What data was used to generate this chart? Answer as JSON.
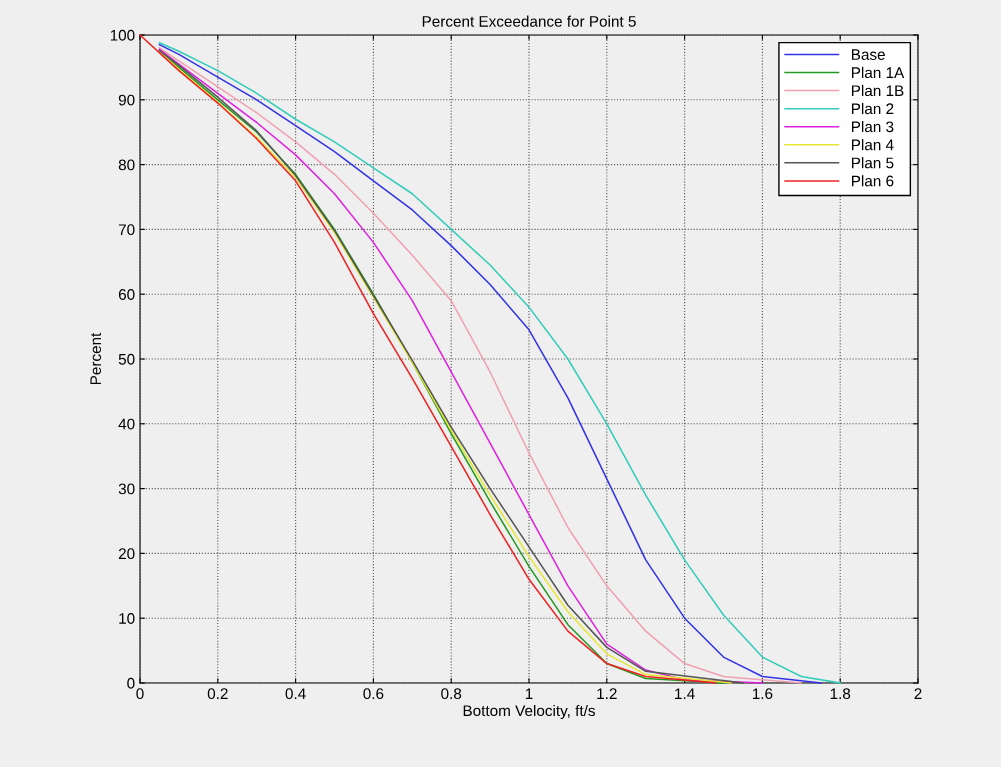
{
  "chart_data": {
    "type": "line",
    "title": "Percent Exceedance for Point 5",
    "xlabel": "Bottom Velocity, ft/s",
    "ylabel": "Percent",
    "series": [
      {
        "name": "Base",
        "color": "#3333e6",
        "x": [
          0.05,
          0.1,
          0.2,
          0.3,
          0.4,
          0.5,
          0.6,
          0.7,
          0.8,
          0.9,
          1.0,
          1.1,
          1.2,
          1.3,
          1.4,
          1.5,
          1.6,
          1.75
        ],
        "values": [
          98.5,
          97,
          93.5,
          90,
          86,
          82,
          77.5,
          73,
          67.5,
          61.5,
          54.5,
          44,
          31.5,
          19,
          10,
          4,
          1,
          0
        ]
      },
      {
        "name": "Plan 1A",
        "color": "#229922",
        "x": [
          0.05,
          0.1,
          0.2,
          0.3,
          0.4,
          0.5,
          0.6,
          0.7,
          0.8,
          0.9,
          1.0,
          1.1,
          1.2,
          1.3,
          1.5
        ],
        "values": [
          97.5,
          95,
          90,
          85,
          78.5,
          70,
          60,
          49.5,
          38.5,
          28,
          18,
          9,
          3,
          0.7,
          0
        ]
      },
      {
        "name": "Plan 1B",
        "color": "#f0a0b0",
        "x": [
          0.05,
          0.1,
          0.2,
          0.3,
          0.4,
          0.5,
          0.6,
          0.7,
          0.8,
          0.9,
          1.0,
          1.1,
          1.2,
          1.3,
          1.4,
          1.5,
          1.7
        ],
        "values": [
          98,
          96,
          92,
          88,
          83.5,
          78.5,
          72.5,
          66,
          59,
          48,
          35.5,
          24,
          15,
          8,
          3,
          1,
          0
        ]
      },
      {
        "name": "Plan 2",
        "color": "#33ccbb",
        "x": [
          0.05,
          0.1,
          0.2,
          0.3,
          0.4,
          0.5,
          0.6,
          0.7,
          0.8,
          0.9,
          1.0,
          1.1,
          1.2,
          1.3,
          1.4,
          1.5,
          1.6,
          1.7,
          1.8
        ],
        "values": [
          98.8,
          97.5,
          94.5,
          91,
          87,
          83.5,
          79.5,
          75.5,
          70,
          64.5,
          58,
          50,
          40,
          29,
          19,
          10.5,
          4,
          1,
          0
        ]
      },
      {
        "name": "Plan 3",
        "color": "#dd22dd",
        "x": [
          0.05,
          0.1,
          0.2,
          0.3,
          0.4,
          0.5,
          0.6,
          0.7,
          0.8,
          0.9,
          1.0,
          1.1,
          1.2,
          1.3,
          1.4,
          1.6
        ],
        "values": [
          97.8,
          95.5,
          91,
          86.5,
          81.5,
          75.5,
          68,
          59,
          48,
          37,
          26,
          15,
          6,
          2,
          0.5,
          0
        ]
      },
      {
        "name": "Plan 4",
        "color": "#e6e633",
        "x": [
          0.05,
          0.1,
          0.2,
          0.3,
          0.4,
          0.5,
          0.6,
          0.7,
          0.8,
          0.9,
          1.0,
          1.1,
          1.2,
          1.3,
          1.52
        ],
        "values": [
          97.4,
          94.7,
          89.6,
          84.2,
          78,
          69.5,
          59.5,
          49.5,
          39,
          29,
          19.5,
          11,
          4.5,
          1.3,
          0
        ]
      },
      {
        "name": "Plan 5",
        "color": "#555555",
        "x": [
          0.05,
          0.1,
          0.2,
          0.3,
          0.4,
          0.5,
          0.6,
          0.7,
          0.8,
          0.9,
          1.0,
          1.1,
          1.2,
          1.3,
          1.55
        ],
        "values": [
          97.6,
          95.3,
          90.4,
          85.2,
          78.3,
          69.8,
          59.8,
          49.8,
          39.5,
          30,
          21,
          12,
          5.5,
          1.8,
          0
        ]
      },
      {
        "name": "Plan 6",
        "color": "#ee2222",
        "x": [
          0,
          0.1,
          0.2,
          0.3,
          0.4,
          0.5,
          0.6,
          0.7,
          0.8,
          0.9,
          1.0,
          1.1,
          1.2,
          1.3,
          1.48
        ],
        "values": [
          100,
          94.5,
          89.5,
          84,
          77.5,
          68,
          57,
          47,
          36.5,
          26,
          16,
          8,
          3,
          1,
          0
        ]
      }
    ],
    "xlim": [
      0,
      2
    ],
    "xticks": [
      0,
      0.2,
      0.4,
      0.6,
      0.8,
      1,
      1.2,
      1.4,
      1.6,
      1.8,
      2
    ],
    "ylim": [
      0,
      100
    ],
    "yticks": [
      0,
      10,
      20,
      30,
      40,
      50,
      60,
      70,
      80,
      90,
      100
    ],
    "grid": true,
    "legend": "top right",
    "marker": "none",
    "line_style": "solid"
  }
}
